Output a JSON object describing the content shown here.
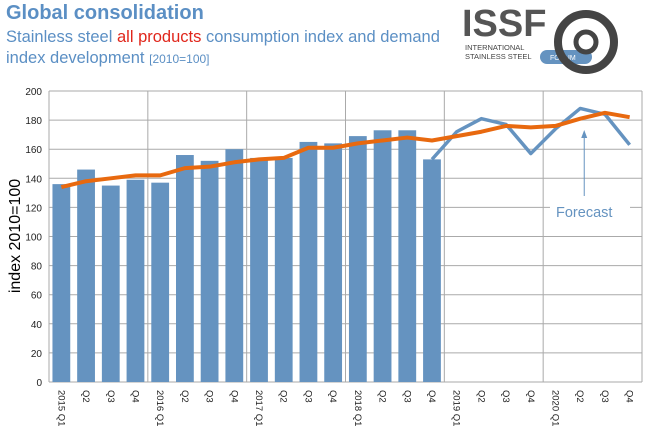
{
  "title": "Global consolidation",
  "subtitle": {
    "pre": "Stainless steel ",
    "highlight": "all products",
    "post": " consumption index and demand index development ",
    "note": "[2010=100]"
  },
  "logo": {
    "text": "ISSF",
    "line1": "INTERNATIONAL",
    "line2": "STAINLESS STEEL",
    "line3": "FORUM"
  },
  "colors": {
    "bars": "#6593c0",
    "forecast_line": "#6593c0",
    "trend": "#e8690f",
    "title": "#5b8fc4",
    "highlight": "#e0261b"
  },
  "chart_data": {
    "type": "bar",
    "ylabel": "index 2010=100",
    "ylim": [
      0,
      200
    ],
    "yticks": [
      0,
      20,
      40,
      60,
      80,
      100,
      120,
      140,
      160,
      180,
      200
    ],
    "grid": true,
    "categories": [
      "2015 Q1",
      "Q2",
      "Q3",
      "Q4",
      "2016 Q1",
      "Q2",
      "Q3",
      "Q4",
      "2017 Q1",
      "Q2",
      "Q3",
      "Q4",
      "2018 Q1",
      "Q2",
      "Q3",
      "Q4",
      "2019 Q1",
      "Q2",
      "Q3",
      "Q4",
      "2020 Q1",
      "Q2",
      "Q3",
      "Q4"
    ],
    "bars": [
      136,
      146,
      135,
      139,
      137,
      156,
      152,
      160,
      154,
      154,
      165,
      164,
      169,
      173,
      173,
      153,
      null,
      null,
      null,
      null,
      null,
      null,
      null,
      null
    ],
    "forecast": [
      null,
      null,
      null,
      null,
      null,
      null,
      null,
      null,
      null,
      null,
      null,
      null,
      null,
      null,
      null,
      153,
      172,
      181,
      177,
      157,
      174,
      188,
      184,
      163
    ],
    "trend": [
      134,
      138,
      140,
      142,
      142,
      147,
      148,
      151,
      153,
      154,
      161,
      161,
      164,
      166,
      168,
      166,
      169,
      172,
      176,
      175,
      176,
      181,
      185,
      182
    ],
    "annotation": "Forecast"
  }
}
